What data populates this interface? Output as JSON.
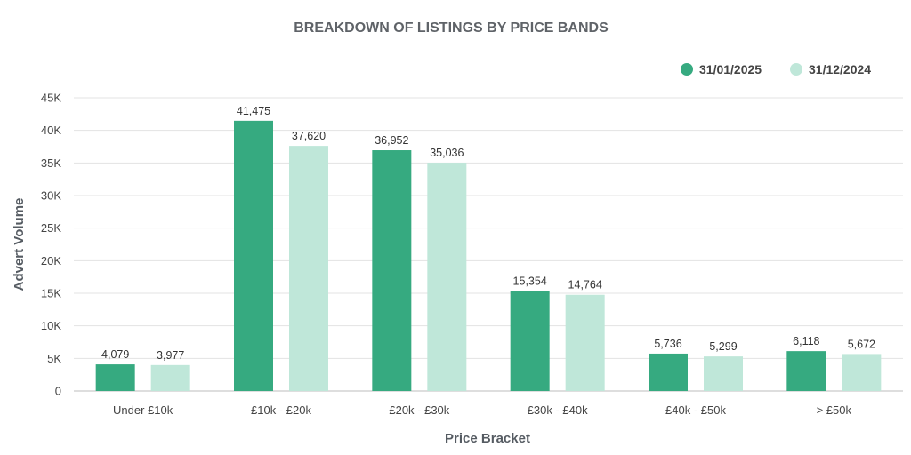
{
  "chart_data": {
    "type": "bar",
    "title": "BREAKDOWN OF LISTINGS BY PRICE BANDS",
    "xlabel": "Price Bracket",
    "ylabel": "Advert Volume",
    "categories": [
      "Under £10k",
      "£10k - £20k",
      "£20k - £30k",
      "£30k - £40k",
      "£40k - £50k",
      "> £50k"
    ],
    "series": [
      {
        "name": "31/01/2025",
        "color": "#36aa80",
        "values": [
          4079,
          41475,
          36952,
          15354,
          5736,
          6118
        ]
      },
      {
        "name": "31/12/2024",
        "color": "#bfe7d9",
        "values": [
          3977,
          37620,
          35036,
          14764,
          5299,
          5672
        ]
      }
    ],
    "data_labels": [
      [
        "4,079",
        "41,475",
        "36,952",
        "15,354",
        "5,736",
        "6,118"
      ],
      [
        "3,977",
        "37,620",
        "35,036",
        "14,764",
        "5,299",
        "5,672"
      ]
    ],
    "ylim": [
      0,
      45000
    ],
    "yticks": [
      0,
      5000,
      10000,
      15000,
      20000,
      25000,
      30000,
      35000,
      40000,
      45000
    ],
    "ytick_labels": [
      "0",
      "5K",
      "10K",
      "15K",
      "20K",
      "25K",
      "30K",
      "35K",
      "40K",
      "45K"
    ],
    "grid": true,
    "legend_position": "top-right"
  }
}
